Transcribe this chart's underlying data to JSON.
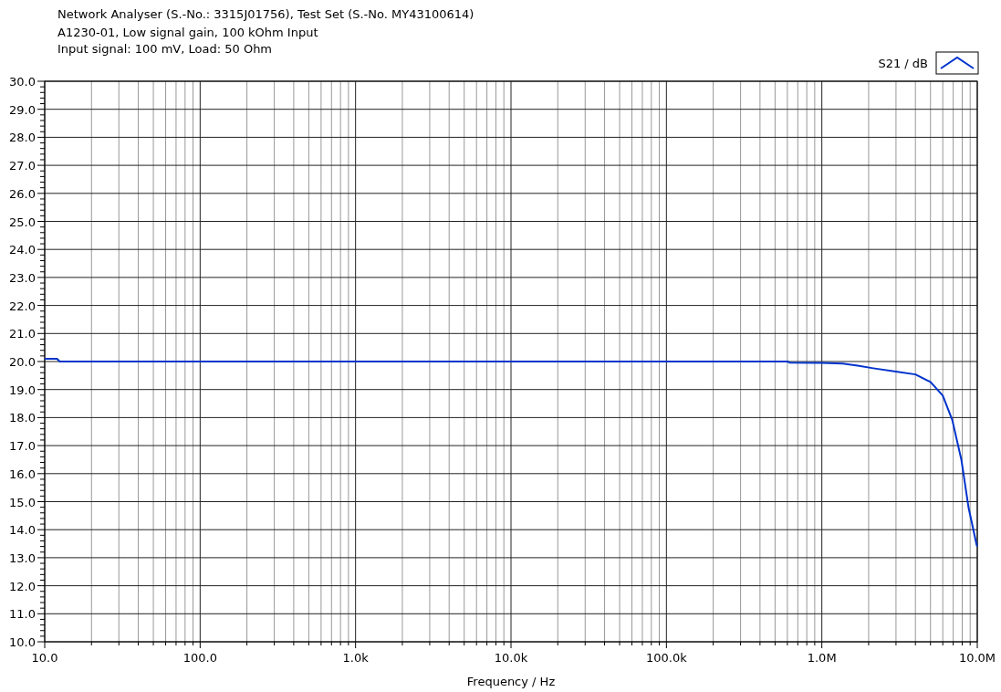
{
  "chart_data": {
    "type": "line",
    "title": "Network Analyser (S.-No.: 3315J01756), Test Set (S.-No. MY43100614)",
    "subtitle": "A1230-01, Low signal gain, 100 kOhm Input\nInput signal: 100 mV, Load: 50 Ohm",
    "xlabel": "Frequency / Hz",
    "log": "x",
    "grid": true,
    "legend": "top right",
    "xlim": [
      10,
      10000000
    ],
    "ylim": [
      10,
      30
    ],
    "xticks": [
      {
        "value": 10,
        "label": "10.0"
      },
      {
        "value": 20,
        "label": null
      },
      {
        "value": 30,
        "label": null
      },
      {
        "value": 40,
        "label": null
      },
      {
        "value": 50,
        "label": null
      },
      {
        "value": 60,
        "label": null
      },
      {
        "value": 70,
        "label": null
      },
      {
        "value": 80,
        "label": null
      },
      {
        "value": 90,
        "label": null
      },
      {
        "value": 100,
        "label": "100.0"
      },
      {
        "value": 200,
        "label": null
      },
      {
        "value": 300,
        "label": null
      },
      {
        "value": 400,
        "label": null
      },
      {
        "value": 500,
        "label": null
      },
      {
        "value": 600,
        "label": null
      },
      {
        "value": 700,
        "label": null
      },
      {
        "value": 800,
        "label": null
      },
      {
        "value": 900,
        "label": null
      },
      {
        "value": 1000,
        "label": "1.0k"
      },
      {
        "value": 2000,
        "label": null
      },
      {
        "value": 3000,
        "label": null
      },
      {
        "value": 4000,
        "label": null
      },
      {
        "value": 5000,
        "label": null
      },
      {
        "value": 6000,
        "label": null
      },
      {
        "value": 7000,
        "label": null
      },
      {
        "value": 8000,
        "label": null
      },
      {
        "value": 9000,
        "label": null
      },
      {
        "value": 10000,
        "label": "10.0k"
      },
      {
        "value": 20000,
        "label": null
      },
      {
        "value": 30000,
        "label": null
      },
      {
        "value": 40000,
        "label": null
      },
      {
        "value": 50000,
        "label": null
      },
      {
        "value": 60000,
        "label": null
      },
      {
        "value": 70000,
        "label": null
      },
      {
        "value": 80000,
        "label": null
      },
      {
        "value": 90000,
        "label": null
      },
      {
        "value": 100000,
        "label": "100.0k"
      },
      {
        "value": 200000,
        "label": null
      },
      {
        "value": 300000,
        "label": null
      },
      {
        "value": 400000,
        "label": null
      },
      {
        "value": 500000,
        "label": null
      },
      {
        "value": 600000,
        "label": null
      },
      {
        "value": 700000,
        "label": null
      },
      {
        "value": 800000,
        "label": null
      },
      {
        "value": 900000,
        "label": null
      },
      {
        "value": 1000000,
        "label": "1.0M"
      },
      {
        "value": 2000000,
        "label": null
      },
      {
        "value": 3000000,
        "label": null
      },
      {
        "value": 4000000,
        "label": null
      },
      {
        "value": 5000000,
        "label": null
      },
      {
        "value": 6000000,
        "label": null
      },
      {
        "value": 7000000,
        "label": null
      },
      {
        "value": 8000000,
        "label": null
      },
      {
        "value": 9000000,
        "label": null
      },
      {
        "value": 10000000,
        "label": "10.0M"
      }
    ],
    "yticks": [
      {
        "value": 10,
        "label": "10.0"
      },
      {
        "value": 11,
        "label": "11.0"
      },
      {
        "value": 12,
        "label": "12.0"
      },
      {
        "value": 13,
        "label": "13.0"
      },
      {
        "value": 14,
        "label": "14.0"
      },
      {
        "value": 15,
        "label": "15.0"
      },
      {
        "value": 16,
        "label": "16.0"
      },
      {
        "value": 17,
        "label": "17.0"
      },
      {
        "value": 18,
        "label": "18.0"
      },
      {
        "value": 19,
        "label": "19.0"
      },
      {
        "value": 20,
        "label": "20.0"
      },
      {
        "value": 21,
        "label": "21.0"
      },
      {
        "value": 22,
        "label": "22.0"
      },
      {
        "value": 23,
        "label": "23.0"
      },
      {
        "value": 24,
        "label": "24.0"
      },
      {
        "value": 25,
        "label": "25.0"
      },
      {
        "value": 26,
        "label": "26.0"
      },
      {
        "value": 27,
        "label": "27.0"
      },
      {
        "value": 28,
        "label": "28.0"
      },
      {
        "value": 29,
        "label": "29.0"
      },
      {
        "value": 30,
        "label": "30.0"
      }
    ],
    "series": [
      {
        "name": "S21 / dB",
        "color": "#0033cc",
        "x": [
          10,
          12,
          12.5,
          1000,
          100000,
          600000,
          620000,
          1000000,
          1360000,
          1700000,
          2140000,
          3060000,
          4000000,
          5000000,
          6000000,
          6900000,
          7900000,
          8800000,
          9900000,
          10000000
        ],
        "values": [
          20.1,
          20.1,
          20.0,
          20.0,
          20.0,
          20.0,
          19.96,
          19.95,
          19.93,
          19.85,
          19.76,
          19.63,
          19.54,
          19.27,
          18.78,
          17.92,
          16.5,
          14.77,
          13.46,
          13.4
        ]
      }
    ]
  }
}
